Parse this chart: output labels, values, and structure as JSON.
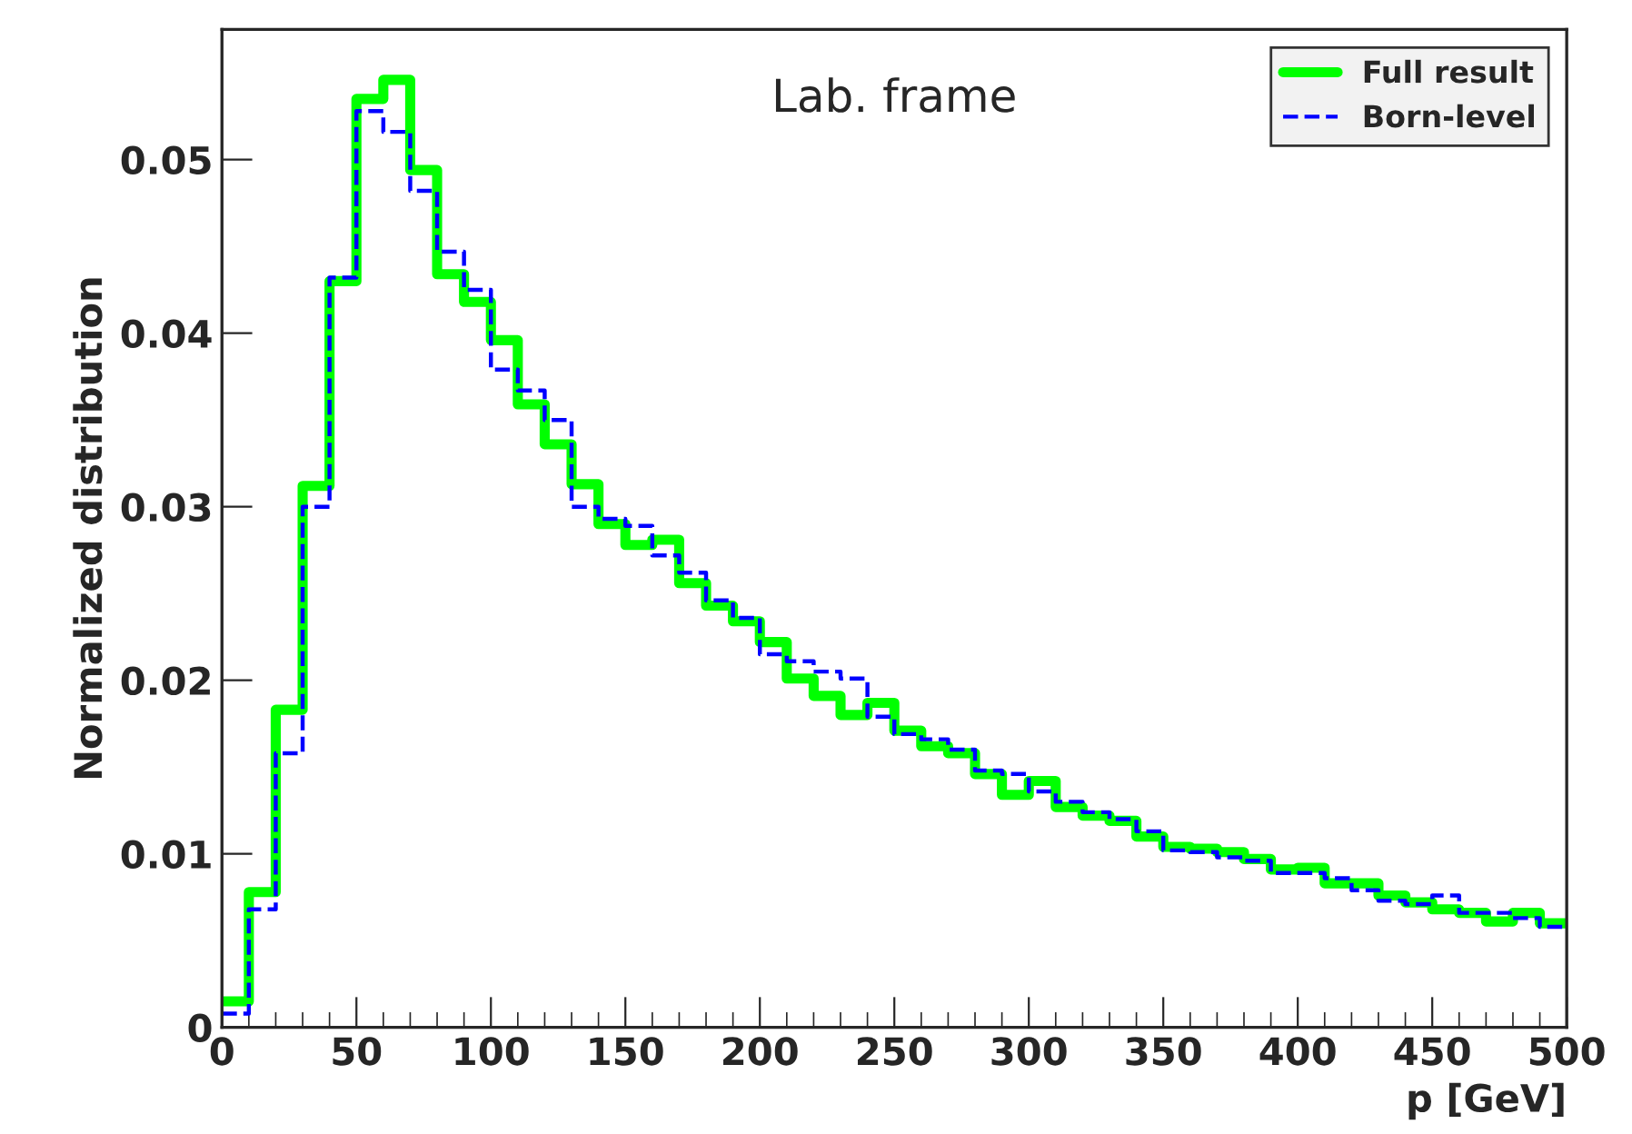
{
  "chart_data": {
    "type": "histogram",
    "xlabel": "p [GeV]",
    "ylabel": "Normalized distribution",
    "annotations": [
      "Lab. frame"
    ],
    "bins": [
      0,
      10,
      20,
      30,
      40,
      50,
      60,
      70,
      80,
      90,
      100,
      110,
      120,
      130,
      140,
      150,
      160,
      170,
      180,
      190,
      200,
      210,
      220,
      230,
      240,
      250,
      260,
      270,
      280,
      290,
      300,
      310,
      320,
      330,
      340,
      350,
      360,
      370,
      380,
      390,
      400,
      410,
      420,
      430,
      440,
      450,
      460,
      470,
      480,
      490,
      500
    ],
    "series": [
      {
        "name": "Full result",
        "color": "#00ff00",
        "line_style": "solid",
        "values": [
          0.0015,
          0.0078,
          0.0183,
          0.0312,
          0.043,
          0.0535,
          0.0546,
          0.0494,
          0.0434,
          0.0418,
          0.0396,
          0.0359,
          0.0336,
          0.0313,
          0.029,
          0.0278,
          0.0281,
          0.0256,
          0.0243,
          0.0234,
          0.0222,
          0.0201,
          0.0191,
          0.018,
          0.0187,
          0.0171,
          0.0162,
          0.0158,
          0.0146,
          0.0134,
          0.0142,
          0.0127,
          0.0122,
          0.0119,
          0.011,
          0.0104,
          0.0103,
          0.0101,
          0.0097,
          0.0091,
          0.0092,
          0.0083,
          0.0083,
          0.0076,
          0.0072,
          0.0068,
          0.0066,
          0.0061,
          0.0066,
          0.006
        ]
      },
      {
        "name": "Born-level",
        "color": "#0000ff",
        "line_style": "dashed",
        "values": [
          0.0008,
          0.0068,
          0.0158,
          0.03,
          0.0432,
          0.0528,
          0.0516,
          0.0482,
          0.0447,
          0.0425,
          0.0379,
          0.0367,
          0.035,
          0.03,
          0.0293,
          0.0289,
          0.0272,
          0.0262,
          0.0246,
          0.0236,
          0.0215,
          0.0211,
          0.0205,
          0.0201,
          0.0179,
          0.0169,
          0.0166,
          0.016,
          0.0148,
          0.0146,
          0.0136,
          0.013,
          0.0124,
          0.012,
          0.0113,
          0.0102,
          0.0101,
          0.0098,
          0.0096,
          0.0089,
          0.0089,
          0.0086,
          0.0079,
          0.0073,
          0.0071,
          0.0076,
          0.0066,
          0.0066,
          0.0063,
          0.0058
        ]
      }
    ],
    "xlim": [
      0,
      500
    ],
    "xticks": [
      0,
      50,
      100,
      150,
      200,
      250,
      300,
      350,
      400,
      450,
      500
    ],
    "ylim": [
      0,
      0.0575
    ],
    "yticks": [
      0,
      0.01,
      0.02,
      0.03,
      0.04,
      0.05
    ],
    "grid": false,
    "legend": "top right"
  }
}
